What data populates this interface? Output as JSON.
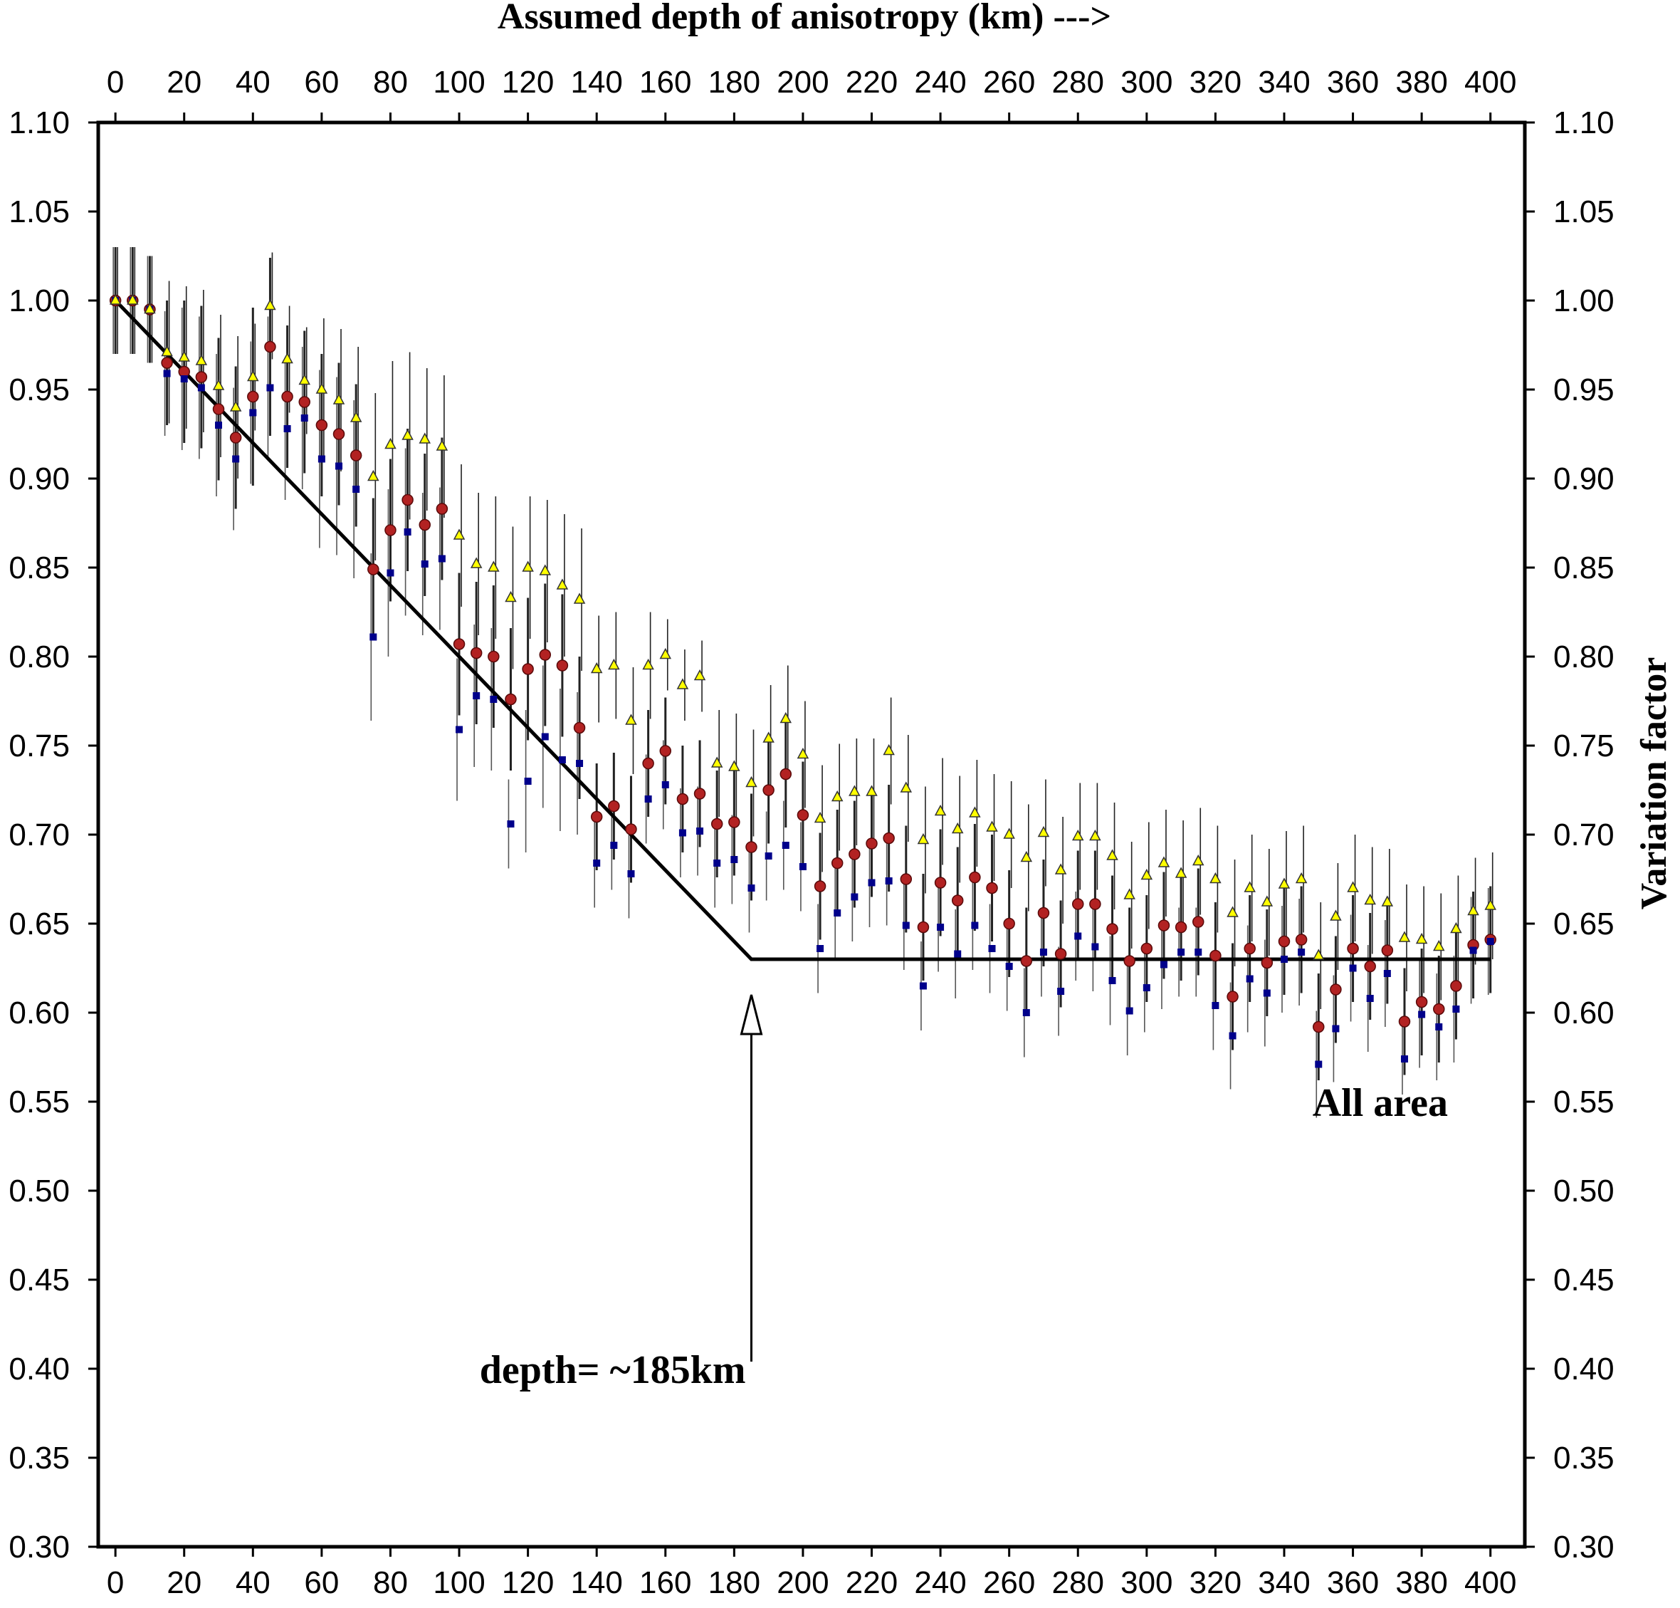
{
  "chart_data": {
    "type": "scatter",
    "title": "",
    "xlabel_top": "Assumed depth of anisotropy (km) --->",
    "ylabel_right": "Variation factor",
    "xlim": [
      -5,
      410
    ],
    "ylim": [
      0.3,
      1.1
    ],
    "xticks": [
      0,
      20,
      40,
      60,
      80,
      100,
      120,
      140,
      160,
      180,
      200,
      220,
      240,
      260,
      280,
      300,
      320,
      340,
      360,
      380,
      400
    ],
    "yticks": [
      0.3,
      0.35,
      0.4,
      0.45,
      0.5,
      0.55,
      0.6,
      0.65,
      0.7,
      0.75,
      0.8,
      0.85,
      0.9,
      0.95,
      1.0,
      1.05,
      1.1
    ],
    "ytick_labels": [
      "0.30",
      "0.35",
      "0.40",
      "0.45",
      "0.50",
      "0.55",
      "0.60",
      "0.65",
      "0.70",
      "0.75",
      "0.80",
      "0.85",
      "0.90",
      "0.95",
      "1.00",
      "1.05",
      "1.10"
    ],
    "x": [
      0,
      5,
      10,
      15,
      20,
      25,
      30,
      35,
      40,
      45,
      50,
      55,
      60,
      65,
      70,
      75,
      80,
      85,
      90,
      95,
      100,
      105,
      110,
      115,
      120,
      125,
      130,
      135,
      140,
      145,
      150,
      155,
      160,
      165,
      170,
      175,
      180,
      185,
      190,
      195,
      200,
      205,
      210,
      215,
      220,
      225,
      230,
      235,
      240,
      245,
      250,
      255,
      260,
      265,
      270,
      275,
      280,
      285,
      290,
      295,
      300,
      305,
      310,
      315,
      320,
      325,
      330,
      335,
      340,
      345,
      350,
      355,
      360,
      365,
      370,
      375,
      380,
      385,
      390,
      395,
      400
    ],
    "series": [
      {
        "marker": "circle",
        "color": "#b22222",
        "values": [
          1.0,
          1.0,
          0.995,
          0.965,
          0.96,
          0.957,
          0.939,
          0.923,
          0.946,
          0.974,
          0.946,
          0.943,
          0.93,
          0.925,
          0.913,
          0.849,
          0.871,
          0.888,
          0.874,
          0.883,
          0.807,
          0.802,
          0.8,
          0.776,
          0.793,
          0.801,
          0.795,
          0.76,
          0.71,
          0.716,
          0.703,
          0.74,
          0.747,
          0.72,
          0.723,
          0.706,
          0.707,
          0.693,
          0.725,
          0.734,
          0.711,
          0.671,
          0.684,
          0.689,
          0.695,
          0.698,
          0.675,
          0.648,
          0.673,
          0.663,
          0.676,
          0.67,
          0.65,
          0.629,
          0.656,
          0.633,
          0.661,
          0.661,
          0.647,
          0.629,
          0.636,
          0.649,
          0.648,
          0.651,
          0.632,
          0.609,
          0.636,
          0.628,
          0.64,
          0.641,
          0.592,
          0.613,
          0.636,
          0.626,
          0.635,
          0.595,
          0.606,
          0.602,
          0.615,
          0.638,
          0.641
        ],
        "error": [
          0.03,
          0.03,
          0.03,
          0.035,
          0.04,
          0.04,
          0.04,
          0.04,
          0.05,
          0.05,
          0.04,
          0.04,
          0.04,
          0.04,
          0.04,
          0.04,
          0.04,
          0.04,
          0.04,
          0.04,
          0.04,
          0.04,
          0.04,
          0.04,
          0.04,
          0.04,
          0.04,
          0.04,
          0.03,
          0.03,
          0.03,
          0.03,
          0.03,
          0.03,
          0.03,
          0.03,
          0.03,
          0.03,
          0.03,
          0.03,
          0.03,
          0.03,
          0.03,
          0.03,
          0.03,
          0.03,
          0.03,
          0.03,
          0.03,
          0.03,
          0.03,
          0.03,
          0.03,
          0.03,
          0.03,
          0.03,
          0.03,
          0.03,
          0.03,
          0.03,
          0.03,
          0.03,
          0.03,
          0.03,
          0.03,
          0.03,
          0.03,
          0.03,
          0.03,
          0.03,
          0.03,
          0.03,
          0.03,
          0.03,
          0.03,
          0.03,
          0.03,
          0.03,
          0.03,
          0.03,
          0.03
        ]
      },
      {
        "marker": "square",
        "color": "#00008b",
        "values": [
          1.0,
          1.0,
          0.995,
          0.959,
          0.956,
          0.951,
          0.93,
          0.911,
          0.937,
          0.951,
          0.928,
          0.934,
          0.911,
          0.907,
          0.894,
          0.811,
          0.847,
          0.87,
          0.852,
          0.855,
          0.759,
          0.778,
          0.776,
          0.706,
          0.73,
          0.755,
          0.742,
          0.74,
          0.684,
          0.694,
          0.678,
          0.72,
          0.728,
          0.701,
          0.702,
          0.684,
          0.686,
          0.67,
          0.688,
          0.694,
          0.682,
          0.636,
          0.656,
          0.665,
          0.673,
          0.674,
          0.649,
          0.615,
          0.648,
          0.633,
          0.649,
          0.636,
          0.626,
          0.6,
          0.634,
          0.612,
          0.643,
          0.637,
          0.618,
          0.601,
          0.614,
          0.627,
          0.634,
          0.634,
          0.604,
          0.587,
          0.619,
          0.611,
          0.63,
          0.634,
          0.571,
          0.591,
          0.625,
          0.608,
          0.622,
          0.574,
          0.599,
          0.592,
          0.602,
          0.635,
          0.64
        ],
        "error": [
          0.03,
          0.03,
          0.03,
          0.035,
          0.04,
          0.04,
          0.04,
          0.04,
          0.04,
          0.04,
          0.04,
          0.04,
          0.05,
          0.05,
          0.05,
          0.047,
          0.047,
          0.047,
          0.04,
          0.04,
          0.04,
          0.04,
          0.04,
          0.025,
          0.04,
          0.04,
          0.04,
          0.04,
          0.025,
          0.025,
          0.025,
          0.025,
          0.025,
          0.025,
          0.025,
          0.025,
          0.025,
          0.025,
          0.025,
          0.025,
          0.025,
          0.025,
          0.025,
          0.025,
          0.025,
          0.025,
          0.025,
          0.025,
          0.025,
          0.025,
          0.025,
          0.025,
          0.025,
          0.025,
          0.025,
          0.025,
          0.025,
          0.025,
          0.025,
          0.025,
          0.025,
          0.025,
          0.025,
          0.025,
          0.025,
          0.03,
          0.03,
          0.03,
          0.03,
          0.03,
          0.03,
          0.03,
          0.03,
          0.03,
          0.03,
          0.02,
          0.03,
          0.03,
          0.03,
          0.03,
          0.03
        ]
      },
      {
        "marker": "triangle",
        "color": "#ffff00",
        "values": [
          1.0,
          1.0,
          0.995,
          0.971,
          0.968,
          0.966,
          0.952,
          0.94,
          0.957,
          0.997,
          0.967,
          0.955,
          0.95,
          0.944,
          0.934,
          0.901,
          0.919,
          0.924,
          0.922,
          0.918,
          0.868,
          0.852,
          0.85,
          0.833,
          0.85,
          0.848,
          0.84,
          0.832,
          0.793,
          0.795,
          0.764,
          0.795,
          0.801,
          0.784,
          0.789,
          0.74,
          0.738,
          0.729,
          0.754,
          0.765,
          0.745,
          0.709,
          0.721,
          0.724,
          0.724,
          0.747,
          0.726,
          0.697,
          0.713,
          0.703,
          0.712,
          0.704,
          0.7,
          0.687,
          0.701,
          0.68,
          0.699,
          0.699,
          0.688,
          0.666,
          0.677,
          0.684,
          0.678,
          0.685,
          0.675,
          0.656,
          0.67,
          0.662,
          0.672,
          0.675,
          0.632,
          0.654,
          0.67,
          0.663,
          0.662,
          0.642,
          0.641,
          0.637,
          0.647,
          0.657,
          0.66
        ],
        "error": [
          0.03,
          0.03,
          0.03,
          0.04,
          0.04,
          0.04,
          0.04,
          0.04,
          0.03,
          0.03,
          0.03,
          0.03,
          0.04,
          0.04,
          0.04,
          0.047,
          0.047,
          0.047,
          0.04,
          0.04,
          0.04,
          0.04,
          0.04,
          0.04,
          0.04,
          0.04,
          0.04,
          0.04,
          0.03,
          0.03,
          0.03,
          0.03,
          0.02,
          0.02,
          0.02,
          0.03,
          0.03,
          0.03,
          0.03,
          0.03,
          0.03,
          0.03,
          0.03,
          0.03,
          0.03,
          0.03,
          0.03,
          0.03,
          0.03,
          0.03,
          0.03,
          0.03,
          0.03,
          0.03,
          0.03,
          0.03,
          0.03,
          0.03,
          0.03,
          0.03,
          0.03,
          0.03,
          0.03,
          0.03,
          0.03,
          0.03,
          0.03,
          0.03,
          0.03,
          0.03,
          0.03,
          0.03,
          0.03,
          0.03,
          0.03,
          0.03,
          0.03,
          0.03,
          0.03,
          0.03,
          0.03
        ]
      }
    ],
    "fit_line": {
      "x": [
        0,
        185,
        400
      ],
      "y": [
        1.0,
        0.63,
        0.63
      ]
    },
    "annotations": {
      "depth_label": "depth= ~185km",
      "area_label": "All area",
      "arrow_x": 185,
      "arrow_tip_y": 0.61,
      "arrow_tail_y": 0.4,
      "depth_label_x": 185,
      "depth_label_y": 0.4,
      "area_label_x": 370,
      "area_label_y": 0.55
    },
    "grid": false
  }
}
